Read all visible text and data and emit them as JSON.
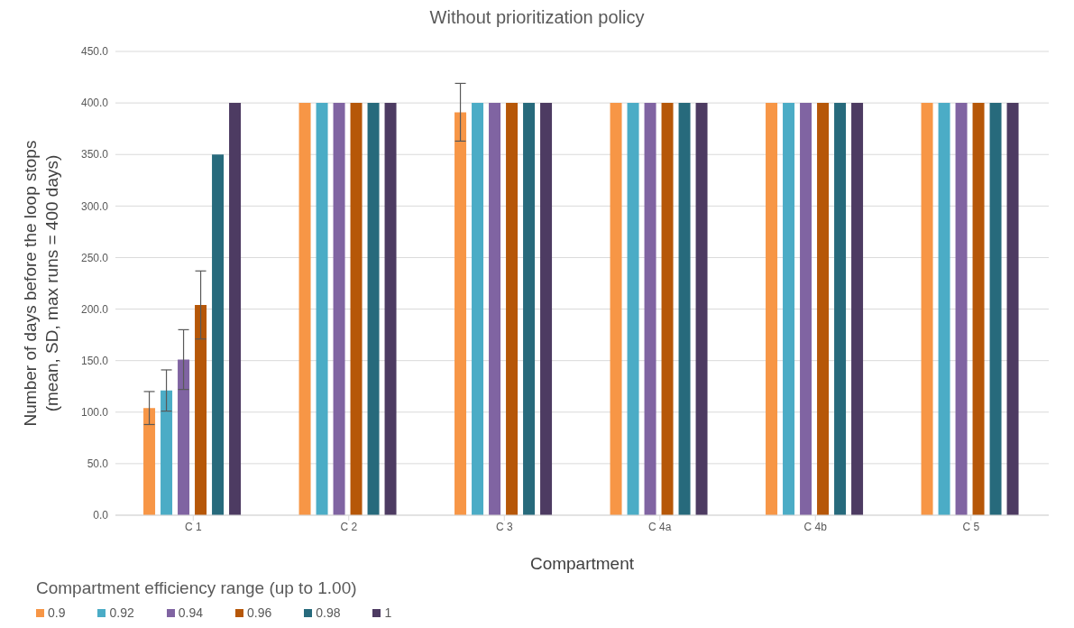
{
  "chart_data": {
    "type": "bar",
    "title": "Without prioritization policy",
    "xlabel": "Compartment",
    "ylabel": "Number of days before the loop stops\n(mean, SD, max runs = 400 days)",
    "legend_title": "Compartment efficiency range (up to 1.00)",
    "categories": [
      "C 1",
      "C 2",
      "C 3",
      "C 4a",
      "C 4b",
      "C 5"
    ],
    "series": [
      {
        "name": "0.9",
        "color": "#f79646",
        "values": [
          104,
          400,
          391,
          400,
          400,
          400
        ],
        "errors": [
          16,
          0,
          28,
          0,
          0,
          0
        ]
      },
      {
        "name": "0.92",
        "color": "#4bacc6",
        "values": [
          121,
          400,
          400,
          400,
          400,
          400
        ],
        "errors": [
          20,
          0,
          0,
          0,
          0,
          0
        ]
      },
      {
        "name": "0.94",
        "color": "#8064a2",
        "values": [
          151,
          400,
          400,
          400,
          400,
          400
        ],
        "errors": [
          29,
          0,
          0,
          0,
          0,
          0
        ]
      },
      {
        "name": "0.96",
        "color": "#b65708",
        "values": [
          204,
          400,
          400,
          400,
          400,
          400
        ],
        "errors": [
          33,
          0,
          0,
          0,
          0,
          0
        ]
      },
      {
        "name": "0.98",
        "color": "#276a7c",
        "values": [
          350,
          400,
          400,
          400,
          400,
          400
        ],
        "errors": [
          0,
          0,
          0,
          0,
          0,
          0
        ]
      },
      {
        "name": "1",
        "color": "#4d3b62",
        "values": [
          400,
          400,
          400,
          400,
          400,
          400
        ],
        "errors": [
          0,
          0,
          0,
          0,
          0,
          0
        ]
      }
    ],
    "ylim": [
      0,
      450
    ],
    "yticks": [
      {
        "value": 0,
        "label": "0.0"
      },
      {
        "value": 50,
        "label": "50.0"
      },
      {
        "value": 100,
        "label": "100.0"
      },
      {
        "value": 150,
        "label": "150.0"
      },
      {
        "value": 200,
        "label": "200.0"
      },
      {
        "value": 250,
        "label": "250.0"
      },
      {
        "value": 300,
        "label": "300.0"
      },
      {
        "value": 350,
        "label": "350.0"
      },
      {
        "value": 400,
        "label": "400.0"
      },
      {
        "value": 450,
        "label": "450.0"
      }
    ],
    "grid": "y",
    "legend": "bottom left"
  }
}
